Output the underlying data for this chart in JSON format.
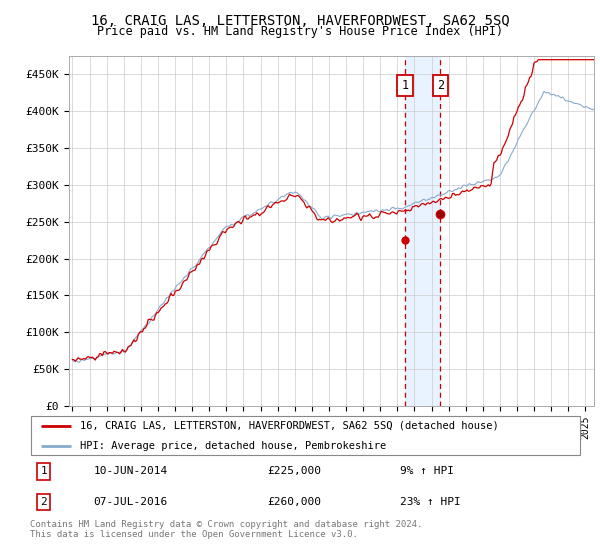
{
  "title": "16, CRAIG LAS, LETTERSTON, HAVERFORDWEST, SA62 5SQ",
  "subtitle": "Price paid vs. HM Land Registry's House Price Index (HPI)",
  "ylabel_ticks": [
    "£0",
    "£50K",
    "£100K",
    "£150K",
    "£200K",
    "£250K",
    "£300K",
    "£350K",
    "£400K",
    "£450K"
  ],
  "ytick_vals": [
    0,
    50000,
    100000,
    150000,
    200000,
    250000,
    300000,
    350000,
    400000,
    450000
  ],
  "ylim": [
    0,
    475000
  ],
  "xlim_start": 1994.8,
  "xlim_end": 2025.5,
  "red_line_color": "#cc0000",
  "blue_line_color": "#88aacc",
  "sale1_date": 2014.44,
  "sale1_price": 225000,
  "sale1_label": "1",
  "sale2_date": 2016.52,
  "sale2_price": 260000,
  "sale2_label": "2",
  "shade_color": "#ddeeff",
  "dashed_color": "#cc0000",
  "footer_text": "Contains HM Land Registry data © Crown copyright and database right 2024.\nThis data is licensed under the Open Government Licence v3.0.",
  "legend_line1": "16, CRAIG LAS, LETTERSTON, HAVERFORDWEST, SA62 5SQ (detached house)",
  "legend_line2": "HPI: Average price, detached house, Pembrokeshire"
}
